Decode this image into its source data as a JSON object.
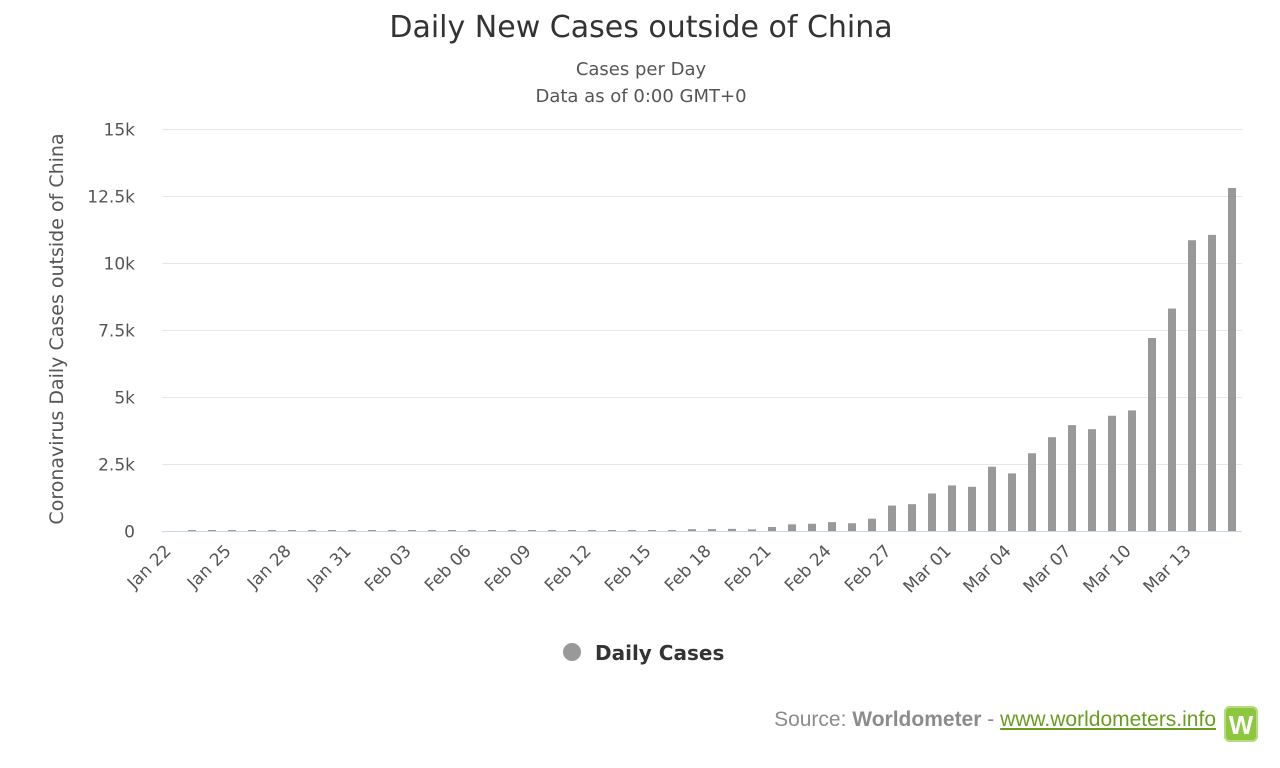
{
  "chart_data": {
    "type": "bar",
    "title": "Daily New Cases outside of China",
    "subtitle": [
      "Cases per Day",
      "Data as of 0:00 GMT+0"
    ],
    "ylabel": "Coronavirus Daily Cases outside of China",
    "xlabel": "",
    "ylim": [
      0,
      15000
    ],
    "yticks": [
      {
        "value": 0,
        "label": "0"
      },
      {
        "value": 2500,
        "label": "2.5k"
      },
      {
        "value": 5000,
        "label": "5k"
      },
      {
        "value": 7500,
        "label": "7.5k"
      },
      {
        "value": 10000,
        "label": "10k"
      },
      {
        "value": 12500,
        "label": "12.5k"
      },
      {
        "value": 15000,
        "label": "15k"
      }
    ],
    "grid": true,
    "legend": {
      "position": "bottom-center",
      "entries": [
        "Daily Cases"
      ]
    },
    "categories": [
      "Jan 22",
      "Jan 23",
      "Jan 24",
      "Jan 25",
      "Jan 26",
      "Jan 27",
      "Jan 28",
      "Jan 29",
      "Jan 30",
      "Jan 31",
      "Feb 01",
      "Feb 02",
      "Feb 03",
      "Feb 04",
      "Feb 05",
      "Feb 06",
      "Feb 07",
      "Feb 08",
      "Feb 09",
      "Feb 10",
      "Feb 11",
      "Feb 12",
      "Feb 13",
      "Feb 14",
      "Feb 15",
      "Feb 16",
      "Feb 17",
      "Feb 18",
      "Feb 19",
      "Feb 20",
      "Feb 21",
      "Feb 22",
      "Feb 23",
      "Feb 24",
      "Feb 25",
      "Feb 26",
      "Feb 27",
      "Feb 28",
      "Feb 29",
      "Mar 01",
      "Mar 02",
      "Mar 03",
      "Mar 04",
      "Mar 05",
      "Mar 06",
      "Mar 07",
      "Mar 08",
      "Mar 09",
      "Mar 10",
      "Mar 11",
      "Mar 12",
      "Mar 13",
      "Mar 14",
      "Mar 15"
    ],
    "xtick_labels": [
      "Jan 22",
      "Jan 25",
      "Jan 28",
      "Jan 31",
      "Feb 03",
      "Feb 06",
      "Feb 09",
      "Feb 12",
      "Feb 15",
      "Feb 18",
      "Feb 21",
      "Feb 24",
      "Feb 27",
      "Mar 01",
      "Mar 04",
      "Mar 07",
      "Mar 10",
      "Mar 13"
    ],
    "series": [
      {
        "name": "Daily Cases",
        "color": "#999999",
        "values": [
          0,
          3,
          4,
          4,
          10,
          8,
          7,
          6,
          10,
          15,
          12,
          10,
          6,
          25,
          25,
          26,
          20,
          25,
          10,
          12,
          12,
          16,
          15,
          10,
          10,
          10,
          70,
          70,
          80,
          60,
          150,
          250,
          270,
          330,
          290,
          460,
          950,
          1000,
          1400,
          1700,
          1650,
          2400,
          2150,
          2900,
          3500,
          3950,
          3800,
          4300,
          4500,
          7200,
          8300,
          10850,
          11050,
          12800
        ]
      }
    ]
  },
  "source": {
    "prefix": "Source: ",
    "brand": "Worldometer",
    "separator": " - ",
    "link_text": "www.worldometers.info",
    "logo_letter": "W",
    "logo_color": "#8dc63f"
  }
}
